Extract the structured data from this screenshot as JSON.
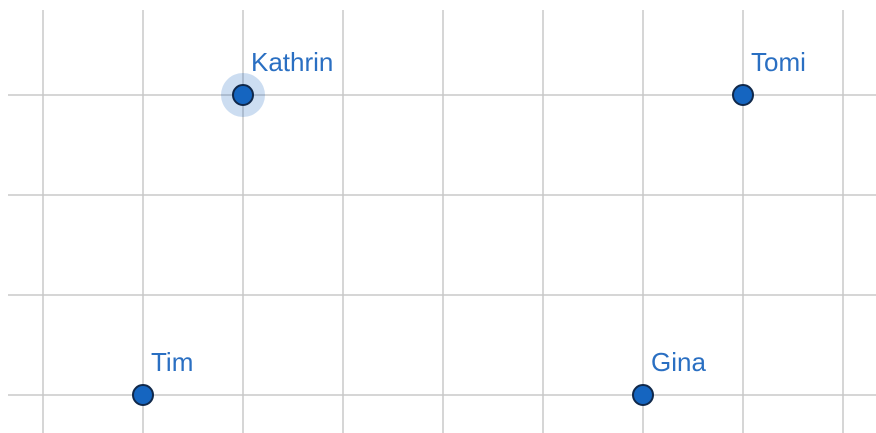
{
  "points": [
    {
      "label": "Kathrin"
    },
    {
      "label": "Tomi"
    },
    {
      "label": "Tim"
    },
    {
      "label": "Gina"
    }
  ]
}
